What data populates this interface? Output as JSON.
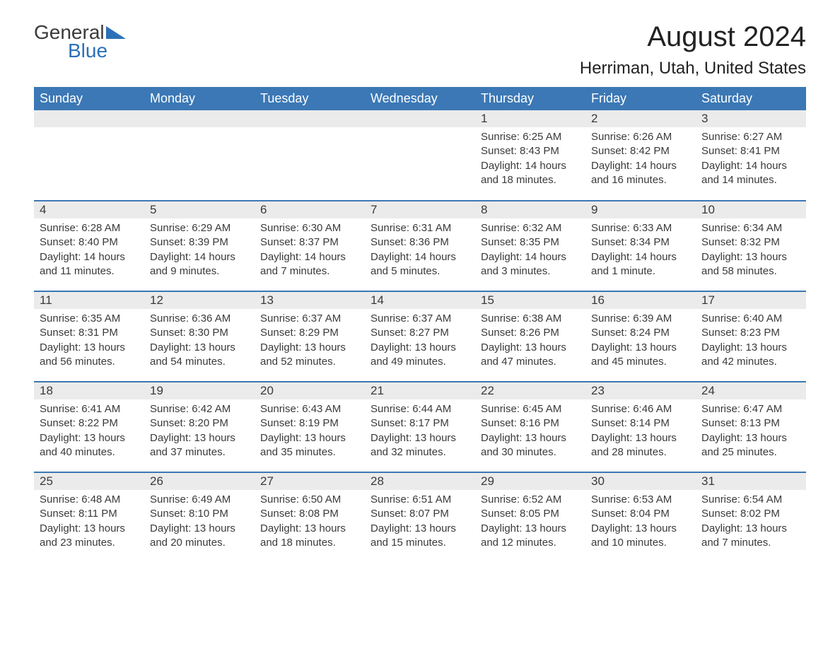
{
  "logo": {
    "text1": "General",
    "text2": "Blue",
    "triangle_color": "#2b71b8"
  },
  "title": "August 2024",
  "location": "Herriman, Utah, United States",
  "colors": {
    "header_bg": "#3b78b5",
    "header_text": "#ffffff",
    "day_number_bg": "#ebebeb",
    "text": "#3a3a3a",
    "border": "#3b78b5",
    "logo_blue": "#2b71b8"
  },
  "day_headers": [
    "Sunday",
    "Monday",
    "Tuesday",
    "Wednesday",
    "Thursday",
    "Friday",
    "Saturday"
  ],
  "weeks": [
    [
      {
        "day": "",
        "sunrise": "",
        "sunset": "",
        "daylight": ""
      },
      {
        "day": "",
        "sunrise": "",
        "sunset": "",
        "daylight": ""
      },
      {
        "day": "",
        "sunrise": "",
        "sunset": "",
        "daylight": ""
      },
      {
        "day": "",
        "sunrise": "",
        "sunset": "",
        "daylight": ""
      },
      {
        "day": "1",
        "sunrise": "Sunrise: 6:25 AM",
        "sunset": "Sunset: 8:43 PM",
        "daylight": "Daylight: 14 hours and 18 minutes."
      },
      {
        "day": "2",
        "sunrise": "Sunrise: 6:26 AM",
        "sunset": "Sunset: 8:42 PM",
        "daylight": "Daylight: 14 hours and 16 minutes."
      },
      {
        "day": "3",
        "sunrise": "Sunrise: 6:27 AM",
        "sunset": "Sunset: 8:41 PM",
        "daylight": "Daylight: 14 hours and 14 minutes."
      }
    ],
    [
      {
        "day": "4",
        "sunrise": "Sunrise: 6:28 AM",
        "sunset": "Sunset: 8:40 PM",
        "daylight": "Daylight: 14 hours and 11 minutes."
      },
      {
        "day": "5",
        "sunrise": "Sunrise: 6:29 AM",
        "sunset": "Sunset: 8:39 PM",
        "daylight": "Daylight: 14 hours and 9 minutes."
      },
      {
        "day": "6",
        "sunrise": "Sunrise: 6:30 AM",
        "sunset": "Sunset: 8:37 PM",
        "daylight": "Daylight: 14 hours and 7 minutes."
      },
      {
        "day": "7",
        "sunrise": "Sunrise: 6:31 AM",
        "sunset": "Sunset: 8:36 PM",
        "daylight": "Daylight: 14 hours and 5 minutes."
      },
      {
        "day": "8",
        "sunrise": "Sunrise: 6:32 AM",
        "sunset": "Sunset: 8:35 PM",
        "daylight": "Daylight: 14 hours and 3 minutes."
      },
      {
        "day": "9",
        "sunrise": "Sunrise: 6:33 AM",
        "sunset": "Sunset: 8:34 PM",
        "daylight": "Daylight: 14 hours and 1 minute."
      },
      {
        "day": "10",
        "sunrise": "Sunrise: 6:34 AM",
        "sunset": "Sunset: 8:32 PM",
        "daylight": "Daylight: 13 hours and 58 minutes."
      }
    ],
    [
      {
        "day": "11",
        "sunrise": "Sunrise: 6:35 AM",
        "sunset": "Sunset: 8:31 PM",
        "daylight": "Daylight: 13 hours and 56 minutes."
      },
      {
        "day": "12",
        "sunrise": "Sunrise: 6:36 AM",
        "sunset": "Sunset: 8:30 PM",
        "daylight": "Daylight: 13 hours and 54 minutes."
      },
      {
        "day": "13",
        "sunrise": "Sunrise: 6:37 AM",
        "sunset": "Sunset: 8:29 PM",
        "daylight": "Daylight: 13 hours and 52 minutes."
      },
      {
        "day": "14",
        "sunrise": "Sunrise: 6:37 AM",
        "sunset": "Sunset: 8:27 PM",
        "daylight": "Daylight: 13 hours and 49 minutes."
      },
      {
        "day": "15",
        "sunrise": "Sunrise: 6:38 AM",
        "sunset": "Sunset: 8:26 PM",
        "daylight": "Daylight: 13 hours and 47 minutes."
      },
      {
        "day": "16",
        "sunrise": "Sunrise: 6:39 AM",
        "sunset": "Sunset: 8:24 PM",
        "daylight": "Daylight: 13 hours and 45 minutes."
      },
      {
        "day": "17",
        "sunrise": "Sunrise: 6:40 AM",
        "sunset": "Sunset: 8:23 PM",
        "daylight": "Daylight: 13 hours and 42 minutes."
      }
    ],
    [
      {
        "day": "18",
        "sunrise": "Sunrise: 6:41 AM",
        "sunset": "Sunset: 8:22 PM",
        "daylight": "Daylight: 13 hours and 40 minutes."
      },
      {
        "day": "19",
        "sunrise": "Sunrise: 6:42 AM",
        "sunset": "Sunset: 8:20 PM",
        "daylight": "Daylight: 13 hours and 37 minutes."
      },
      {
        "day": "20",
        "sunrise": "Sunrise: 6:43 AM",
        "sunset": "Sunset: 8:19 PM",
        "daylight": "Daylight: 13 hours and 35 minutes."
      },
      {
        "day": "21",
        "sunrise": "Sunrise: 6:44 AM",
        "sunset": "Sunset: 8:17 PM",
        "daylight": "Daylight: 13 hours and 32 minutes."
      },
      {
        "day": "22",
        "sunrise": "Sunrise: 6:45 AM",
        "sunset": "Sunset: 8:16 PM",
        "daylight": "Daylight: 13 hours and 30 minutes."
      },
      {
        "day": "23",
        "sunrise": "Sunrise: 6:46 AM",
        "sunset": "Sunset: 8:14 PM",
        "daylight": "Daylight: 13 hours and 28 minutes."
      },
      {
        "day": "24",
        "sunrise": "Sunrise: 6:47 AM",
        "sunset": "Sunset: 8:13 PM",
        "daylight": "Daylight: 13 hours and 25 minutes."
      }
    ],
    [
      {
        "day": "25",
        "sunrise": "Sunrise: 6:48 AM",
        "sunset": "Sunset: 8:11 PM",
        "daylight": "Daylight: 13 hours and 23 minutes."
      },
      {
        "day": "26",
        "sunrise": "Sunrise: 6:49 AM",
        "sunset": "Sunset: 8:10 PM",
        "daylight": "Daylight: 13 hours and 20 minutes."
      },
      {
        "day": "27",
        "sunrise": "Sunrise: 6:50 AM",
        "sunset": "Sunset: 8:08 PM",
        "daylight": "Daylight: 13 hours and 18 minutes."
      },
      {
        "day": "28",
        "sunrise": "Sunrise: 6:51 AM",
        "sunset": "Sunset: 8:07 PM",
        "daylight": "Daylight: 13 hours and 15 minutes."
      },
      {
        "day": "29",
        "sunrise": "Sunrise: 6:52 AM",
        "sunset": "Sunset: 8:05 PM",
        "daylight": "Daylight: 13 hours and 12 minutes."
      },
      {
        "day": "30",
        "sunrise": "Sunrise: 6:53 AM",
        "sunset": "Sunset: 8:04 PM",
        "daylight": "Daylight: 13 hours and 10 minutes."
      },
      {
        "day": "31",
        "sunrise": "Sunrise: 6:54 AM",
        "sunset": "Sunset: 8:02 PM",
        "daylight": "Daylight: 13 hours and 7 minutes."
      }
    ]
  ]
}
